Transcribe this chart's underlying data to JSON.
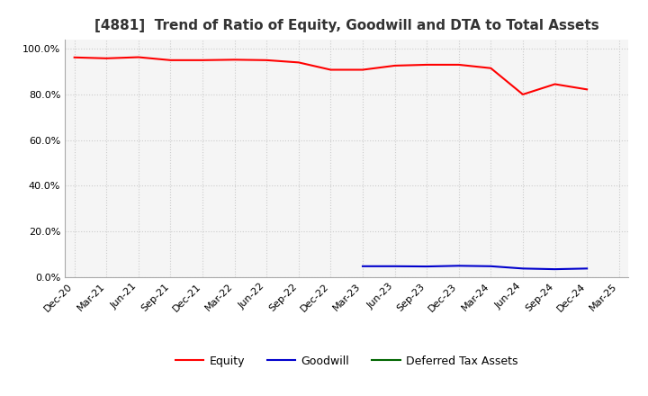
{
  "title": "[4881]  Trend of Ratio of Equity, Goodwill and DTA to Total Assets",
  "x_labels": [
    "Dec-20",
    "Mar-21",
    "Jun-21",
    "Sep-21",
    "Dec-21",
    "Mar-22",
    "Jun-22",
    "Sep-22",
    "Dec-22",
    "Mar-23",
    "Jun-23",
    "Sep-23",
    "Dec-23",
    "Mar-24",
    "Jun-24",
    "Sep-24",
    "Dec-24",
    "Mar-25"
  ],
  "equity": [
    0.962,
    0.958,
    0.963,
    0.95,
    0.95,
    0.952,
    0.95,
    0.94,
    0.908,
    0.908,
    0.926,
    0.93,
    0.93,
    0.915,
    0.8,
    0.845,
    0.822,
    null
  ],
  "goodwill": [
    null,
    null,
    null,
    null,
    null,
    null,
    null,
    null,
    null,
    0.048,
    0.048,
    0.047,
    0.05,
    0.048,
    0.038,
    0.035,
    0.038,
    null
  ],
  "dta": [
    null,
    null,
    null,
    null,
    null,
    null,
    null,
    null,
    null,
    null,
    null,
    null,
    null,
    null,
    null,
    null,
    null,
    null
  ],
  "equity_color": "#ff0000",
  "goodwill_color": "#0000cc",
  "dta_color": "#006600",
  "background_color": "#ffffff",
  "plot_bg_color": "#f5f5f5",
  "grid_color": "#cccccc",
  "ylim": [
    0.0,
    1.04
  ],
  "yticks": [
    0.0,
    0.2,
    0.4,
    0.6,
    0.8,
    1.0
  ],
  "title_fontsize": 11,
  "legend_fontsize": 9,
  "tick_fontsize": 8
}
